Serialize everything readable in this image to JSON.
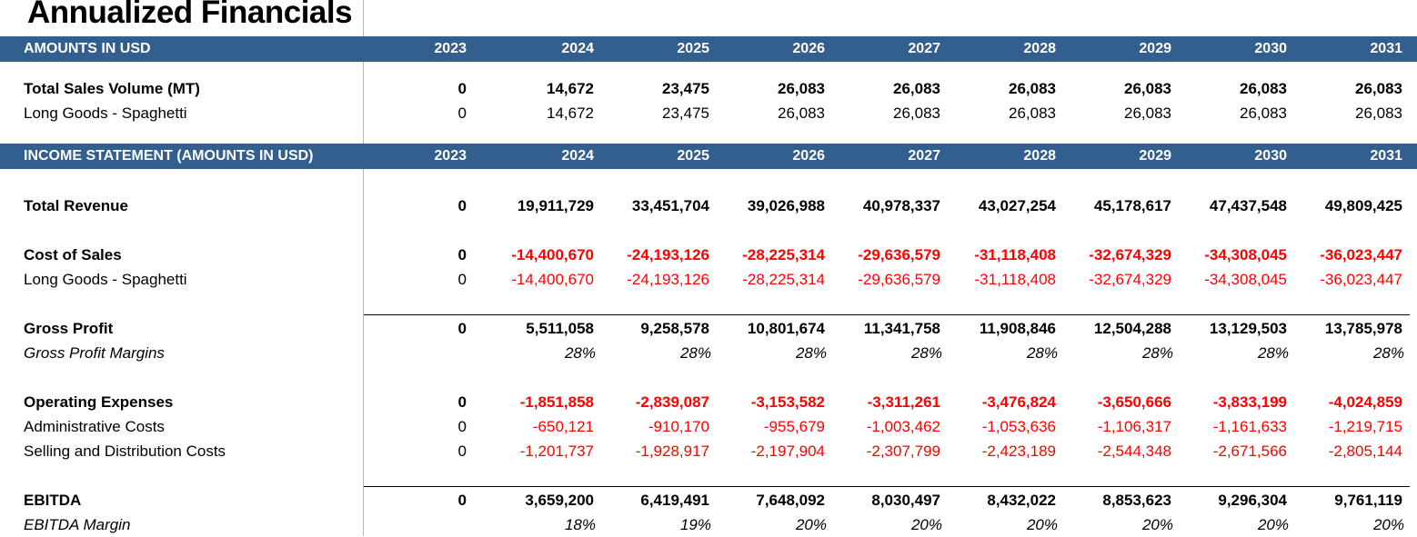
{
  "title": "Annualized Financials",
  "years": [
    "2023",
    "2024",
    "2025",
    "2026",
    "2027",
    "2028",
    "2029",
    "2030",
    "2031"
  ],
  "section1": {
    "label": "AMOUNTS IN USD",
    "rows": [
      {
        "label": "Total Sales Volume (MT)",
        "style": "bold",
        "values": [
          "0",
          "14,672",
          "23,475",
          "26,083",
          "26,083",
          "26,083",
          "26,083",
          "26,083",
          "26,083"
        ]
      },
      {
        "label": "Long Goods - Spaghetti",
        "style": "normal",
        "values": [
          "0",
          "14,672",
          "23,475",
          "26,083",
          "26,083",
          "26,083",
          "26,083",
          "26,083",
          "26,083"
        ]
      }
    ]
  },
  "section2": {
    "label": "INCOME STATEMENT (AMOUNTS IN USD)",
    "rows": [
      {
        "label": "Total Revenue",
        "style": "bold",
        "values": [
          "0",
          "19,911,729",
          "33,451,704",
          "39,026,988",
          "40,978,337",
          "43,027,254",
          "45,178,617",
          "47,437,548",
          "49,809,425"
        ]
      },
      {
        "label": "Cost of Sales",
        "style": "bold",
        "values": [
          "0",
          "-14,400,670",
          "-24,193,126",
          "-28,225,314",
          "-29,636,579",
          "-31,118,408",
          "-32,674,329",
          "-34,308,045",
          "-36,023,447"
        ]
      },
      {
        "label": "Long Goods - Spaghetti",
        "style": "normal",
        "values": [
          "0",
          "-14,400,670",
          "-24,193,126",
          "-28,225,314",
          "-29,636,579",
          "-31,118,408",
          "-32,674,329",
          "-34,308,045",
          "-36,023,447"
        ]
      },
      {
        "label": "Gross Profit",
        "style": "bold",
        "values": [
          "0",
          "5,511,058",
          "9,258,578",
          "10,801,674",
          "11,341,758",
          "11,908,846",
          "12,504,288",
          "13,129,503",
          "13,785,978"
        ]
      },
      {
        "label": "Gross Profit Margins",
        "style": "italic",
        "values": [
          "",
          "28%",
          "28%",
          "28%",
          "28%",
          "28%",
          "28%",
          "28%",
          "28%"
        ]
      },
      {
        "label": "Operating Expenses",
        "style": "bold",
        "values": [
          "0",
          "-1,851,858",
          "-2,839,087",
          "-3,153,582",
          "-3,311,261",
          "-3,476,824",
          "-3,650,666",
          "-3,833,199",
          "-4,024,859"
        ]
      },
      {
        "label": "Administrative Costs",
        "style": "normal",
        "values": [
          "0",
          "-650,121",
          "-910,170",
          "-955,679",
          "-1,003,462",
          "-1,053,636",
          "-1,106,317",
          "-1,161,633",
          "-1,219,715"
        ]
      },
      {
        "label": "Selling and Distribution Costs",
        "style": "normal",
        "values": [
          "0",
          "-1,201,737",
          "-1,928,917",
          "-2,197,904",
          "-2,307,799",
          "-2,423,189",
          "-2,544,348",
          "-2,671,566",
          "-2,805,144"
        ]
      },
      {
        "label": "EBITDA",
        "style": "bold",
        "values": [
          "0",
          "3,659,200",
          "6,419,491",
          "7,648,092",
          "8,030,497",
          "8,432,022",
          "8,853,623",
          "9,296,304",
          "9,761,119"
        ]
      },
      {
        "label": "EBITDA Margin",
        "style": "italic",
        "values": [
          "",
          "18%",
          "19%",
          "20%",
          "20%",
          "20%",
          "20%",
          "20%",
          "20%"
        ]
      }
    ]
  },
  "colors": {
    "header_band": "#335f8f",
    "negative": "#ff0000"
  }
}
